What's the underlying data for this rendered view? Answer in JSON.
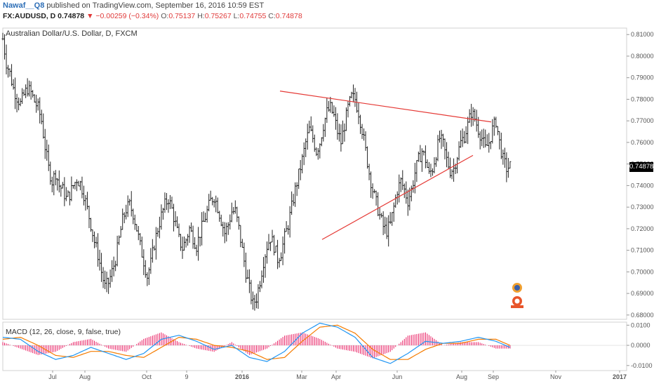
{
  "header": {
    "author": "Nawaf__Q8",
    "published": "published on TradingView.com, September 16, 2016 10:59 EST",
    "symbol": "FX:AUDUSD, D",
    "last": "0.74878",
    "arrow": "▼",
    "change": "−0.00259 (−0.34%)",
    "o_label": "O:",
    "o_value": "0.75137",
    "h_label": "H:",
    "h_value": "0.75267",
    "l_label": "L:",
    "l_value": "0.74755",
    "c_label": "C:",
    "c_value": "0.74878"
  },
  "chart_title": "Australian Dollar/U.S. Dollar, D, FXCM",
  "macd_title": "MACD (12, 26, close, 9, false, true)",
  "price_badge": "0.74878",
  "colors": {
    "bars": "#222222",
    "trendline": "#e53935",
    "macd_line": "#2196f3",
    "signal_line": "#f57c00",
    "histogram": "#e91e63"
  },
  "chart_data": {
    "type": "ohlc-bar",
    "symbol": "AUDUSD",
    "ylim": [
      0.678,
      0.813
    ],
    "y_ticks": [
      "0.81000",
      "0.80000",
      "0.79000",
      "0.78000",
      "0.77000",
      "0.76000",
      "0.75000",
      "0.74000",
      "0.73000",
      "0.72000",
      "0.71000",
      "0.70000",
      "0.69000",
      "0.68000"
    ],
    "x_ticks": [
      "Jul",
      "Aug",
      "Oct",
      "9",
      "2016",
      "Mar",
      "Apr",
      "Jun",
      "Aug",
      "Sep",
      "Nov",
      "2017"
    ],
    "close_path": [
      [
        0,
        0.808
      ],
      [
        4,
        0.797
      ],
      [
        8,
        0.792
      ],
      [
        12,
        0.785
      ],
      [
        16,
        0.781
      ],
      [
        20,
        0.778
      ],
      [
        24,
        0.782
      ],
      [
        28,
        0.785
      ],
      [
        32,
        0.783
      ],
      [
        36,
        0.779
      ],
      [
        40,
        0.776
      ],
      [
        44,
        0.77
      ],
      [
        48,
        0.758
      ],
      [
        52,
        0.748
      ],
      [
        56,
        0.742
      ],
      [
        60,
        0.746
      ],
      [
        64,
        0.74
      ],
      [
        68,
        0.738
      ],
      [
        72,
        0.734
      ],
      [
        76,
        0.736
      ],
      [
        80,
        0.74
      ],
      [
        84,
        0.743
      ],
      [
        88,
        0.741
      ],
      [
        92,
        0.736
      ],
      [
        96,
        0.729
      ],
      [
        100,
        0.722
      ],
      [
        104,
        0.714
      ],
      [
        108,
        0.708
      ],
      [
        112,
        0.7
      ],
      [
        116,
        0.693
      ],
      [
        120,
        0.695
      ],
      [
        124,
        0.7
      ],
      [
        128,
        0.706
      ],
      [
        132,
        0.715
      ],
      [
        136,
        0.724
      ],
      [
        140,
        0.729
      ],
      [
        144,
        0.731
      ],
      [
        148,
        0.727
      ],
      [
        152,
        0.72
      ],
      [
        156,
        0.712
      ],
      [
        160,
        0.705
      ],
      [
        164,
        0.698
      ],
      [
        168,
        0.704
      ],
      [
        172,
        0.713
      ],
      [
        176,
        0.72
      ],
      [
        180,
        0.726
      ],
      [
        184,
        0.731
      ],
      [
        188,
        0.734
      ],
      [
        192,
        0.729
      ],
      [
        196,
        0.722
      ],
      [
        200,
        0.715
      ],
      [
        204,
        0.711
      ],
      [
        208,
        0.715
      ],
      [
        212,
        0.72
      ],
      [
        216,
        0.716
      ],
      [
        220,
        0.712
      ],
      [
        224,
        0.718
      ],
      [
        228,
        0.723
      ],
      [
        232,
        0.728
      ],
      [
        236,
        0.733
      ],
      [
        240,
        0.735
      ],
      [
        244,
        0.73
      ],
      [
        248,
        0.724
      ],
      [
        252,
        0.718
      ],
      [
        256,
        0.722
      ],
      [
        260,
        0.728
      ],
      [
        264,
        0.728
      ],
      [
        268,
        0.72
      ],
      [
        272,
        0.71
      ],
      [
        276,
        0.7
      ],
      [
        280,
        0.692
      ],
      [
        284,
        0.685
      ],
      [
        288,
        0.688
      ],
      [
        292,
        0.696
      ],
      [
        296,
        0.705
      ],
      [
        300,
        0.712
      ],
      [
        304,
        0.716
      ],
      [
        308,
        0.712
      ],
      [
        312,
        0.706
      ],
      [
        316,
        0.709
      ],
      [
        320,
        0.716
      ],
      [
        324,
        0.722
      ],
      [
        328,
        0.73
      ],
      [
        332,
        0.738
      ],
      [
        336,
        0.745
      ],
      [
        340,
        0.752
      ],
      [
        344,
        0.76
      ],
      [
        348,
        0.766
      ],
      [
        352,
        0.762
      ],
      [
        356,
        0.756
      ],
      [
        360,
        0.76
      ],
      [
        364,
        0.768
      ],
      [
        368,
        0.774
      ],
      [
        372,
        0.776
      ],
      [
        376,
        0.772
      ],
      [
        380,
        0.765
      ],
      [
        384,
        0.76
      ],
      [
        388,
        0.768
      ],
      [
        392,
        0.776
      ],
      [
        396,
        0.781
      ],
      [
        400,
        0.78
      ],
      [
        404,
        0.774
      ],
      [
        408,
        0.766
      ],
      [
        412,
        0.756
      ],
      [
        416,
        0.746
      ],
      [
        420,
        0.738
      ],
      [
        424,
        0.732
      ],
      [
        428,
        0.726
      ],
      [
        432,
        0.721
      ],
      [
        436,
        0.719
      ],
      [
        440,
        0.722
      ],
      [
        444,
        0.73
      ],
      [
        448,
        0.738
      ],
      [
        452,
        0.742
      ],
      [
        456,
        0.738
      ],
      [
        460,
        0.733
      ],
      [
        464,
        0.738
      ],
      [
        468,
        0.746
      ],
      [
        472,
        0.752
      ],
      [
        476,
        0.756
      ],
      [
        480,
        0.752
      ],
      [
        484,
        0.745
      ],
      [
        488,
        0.748
      ],
      [
        492,
        0.755
      ],
      [
        496,
        0.762
      ],
      [
        500,
        0.759
      ],
      [
        504,
        0.752
      ],
      [
        508,
        0.747
      ],
      [
        512,
        0.748
      ],
      [
        516,
        0.754
      ],
      [
        520,
        0.76
      ],
      [
        524,
        0.763
      ],
      [
        528,
        0.768
      ],
      [
        532,
        0.774
      ],
      [
        536,
        0.771
      ],
      [
        540,
        0.766
      ],
      [
        544,
        0.762
      ],
      [
        548,
        0.757
      ],
      [
        552,
        0.76
      ],
      [
        556,
        0.766
      ],
      [
        560,
        0.77
      ],
      [
        564,
        0.76
      ],
      [
        568,
        0.752
      ],
      [
        572,
        0.748
      ],
      [
        576,
        0.749
      ]
    ],
    "trendlines": [
      {
        "x0": 399,
        "y0": 0.7838,
        "x1": 700,
        "y1": 0.7695
      },
      {
        "x0": 459,
        "y0": 0.715,
        "x1": 674,
        "y1": 0.754
      }
    ],
    "macd": {
      "ylim": [
        -0.0125,
        0.0115
      ],
      "y_ticks": [
        "0.0100",
        "0.0000",
        "-0.0100"
      ],
      "macd_path": [
        [
          0,
          0.004
        ],
        [
          20,
          0.003
        ],
        [
          40,
          -0.003
        ],
        [
          60,
          -0.007
        ],
        [
          80,
          -0.005
        ],
        [
          100,
          -0.001
        ],
        [
          120,
          -0.004
        ],
        [
          140,
          -0.007
        ],
        [
          160,
          -0.004
        ],
        [
          180,
          0.003
        ],
        [
          200,
          0.005
        ],
        [
          220,
          0.002
        ],
        [
          240,
          -0.002
        ],
        [
          260,
          0.0
        ],
        [
          280,
          -0.006
        ],
        [
          300,
          -0.008
        ],
        [
          320,
          -0.003
        ],
        [
          340,
          0.006
        ],
        [
          360,
          0.011
        ],
        [
          380,
          0.009
        ],
        [
          400,
          0.004
        ],
        [
          420,
          -0.006
        ],
        [
          440,
          -0.009
        ],
        [
          460,
          -0.004
        ],
        [
          480,
          0.002
        ],
        [
          500,
          0.001
        ],
        [
          520,
          0.002
        ],
        [
          540,
          0.004
        ],
        [
          560,
          0.002
        ],
        [
          576,
          -0.001
        ]
      ],
      "signal_path": [
        [
          0,
          0.003
        ],
        [
          20,
          0.004
        ],
        [
          40,
          0.0
        ],
        [
          60,
          -0.005
        ],
        [
          80,
          -0.006
        ],
        [
          100,
          -0.003
        ],
        [
          120,
          -0.003
        ],
        [
          140,
          -0.005
        ],
        [
          160,
          -0.006
        ],
        [
          180,
          -0.001
        ],
        [
          200,
          0.004
        ],
        [
          220,
          0.003
        ],
        [
          240,
          0.0
        ],
        [
          260,
          -0.001
        ],
        [
          280,
          -0.003
        ],
        [
          300,
          -0.007
        ],
        [
          320,
          -0.006
        ],
        [
          340,
          0.002
        ],
        [
          360,
          0.009
        ],
        [
          380,
          0.01
        ],
        [
          400,
          0.006
        ],
        [
          420,
          -0.002
        ],
        [
          440,
          -0.007
        ],
        [
          460,
          -0.007
        ],
        [
          480,
          -0.002
        ],
        [
          500,
          0.001
        ],
        [
          520,
          0.001
        ],
        [
          540,
          0.003
        ],
        [
          560,
          0.003
        ],
        [
          576,
          0.0
        ]
      ]
    }
  }
}
